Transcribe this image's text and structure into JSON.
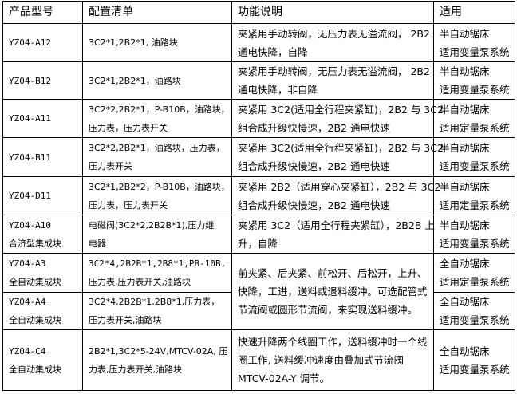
{
  "headers": [
    "产品型号",
    "配置清单",
    "功能说明",
    "适用"
  ],
  "rows": [
    {
      "model": [
        "YZ04-A12"
      ],
      "config": [
        "3C2*1,2B2*1, 油路块"
      ],
      "function": [
        "夹紧用手动转阀，无压力表无溢流阀， 2B2",
        "通电快降，自降"
      ],
      "use": [
        "半自动锯床",
        "适用变量泵系统"
      ]
    },
    {
      "model": [
        "YZ04-B12"
      ],
      "config": [
        "3C2*1,2B2*1，油路块"
      ],
      "function": [
        "夹紧用手动转阀，无压力表无溢流阀， 2B2",
        "通电快降，非自降"
      ],
      "use": [
        "半自动锯床",
        "适用变量泵系统"
      ]
    },
    {
      "model": [
        "YZ04-A11"
      ],
      "config": [
        "3C2*2,2B2*1，P-B10B，油路块，",
        "压力表，压力表开关"
      ],
      "function": [
        "夹紧用 3C2(适用全行程夹紧缸)，2B2 与 3C2",
        "组合成升级快慢速，2B2 通电快速"
      ],
      "use": [
        "半自动锯床",
        "适用定量泵系统"
      ]
    },
    {
      "model": [
        "YZ04-B11"
      ],
      "config": [
        "3C2*2,2B2*1，油路块，压力表，",
        "压力表开关"
      ],
      "function": [
        "夹紧用 3C2(适用全行程夹紧缸)，2B2 与 3C2",
        "组合成升级快慢速，2B2 通电快速"
      ],
      "use": [
        "半自动锯床",
        "适用变量泵系统"
      ]
    },
    {
      "model": [
        "YZ04-D11"
      ],
      "config": [
        "3C2*1,2B2*2，P-B10B，油路块，",
        "压力表，压力表开关"
      ],
      "function": [
        "夹紧用 2B2（适用穿心夹紧缸），2B2 与 3C2",
        "组合成升级快慢速，2B2 通电快速"
      ],
      "use": [
        "半自动锯床",
        "适用定量泵系统"
      ]
    },
    {
      "model": [
        "YZ04-A10",
        "合济型集成块"
      ],
      "config": [
        "电磁阀(3C2*2,2B2B*1),压力继",
        "电器"
      ],
      "function": [
        "夹紧用 3C2（适用全行程夹紧缸），2B2B 上",
        "升，自降"
      ],
      "use": [
        "半自动锯床",
        "适用变量泵系统"
      ]
    },
    {
      "model": [
        "YZ04-A3",
        "全自动集成块"
      ],
      "config": [
        "3C2*4,2B2B*1,2B8*1,PB-10B,",
        "压力表,压力表开关,油路块"
      ],
      "function": [
        "前夹紧、后夹紧、前松开、后松开，上升、",
        "快降，工进，送料或退料缓冲。可选配管式",
        "节流阀或圆形节流阀，来实现送料缓冲。"
      ],
      "use": [
        "全自动锯床",
        "适用定量泵系统"
      ]
    },
    {
      "model": [
        "YZ04-A4",
        "全自动集成块"
      ],
      "config": [
        "3C2*4,2B2B*1,2B8*1,压力表，",
        "压力表开关,油路块"
      ],
      "function": [],
      "use": [
        "全自动锯床",
        "适用变量泵系统"
      ]
    },
    {
      "model": [
        "YZ04-C4",
        "全自动集成块"
      ],
      "config": [
        "2B2*1,3C2*5-24V,MTCV-02A, 压",
        "力表,压力表开关,油路块"
      ],
      "function": [
        "快速升降两个线圈工作，送料缓冲时一个线",
        "圈工作, 送料缓冲速度由叠加式节流阀",
        "MTCV-02A-Y 调节。"
      ],
      "use": [
        "全自动锯床",
        "适用变量泵系统"
      ]
    }
  ]
}
